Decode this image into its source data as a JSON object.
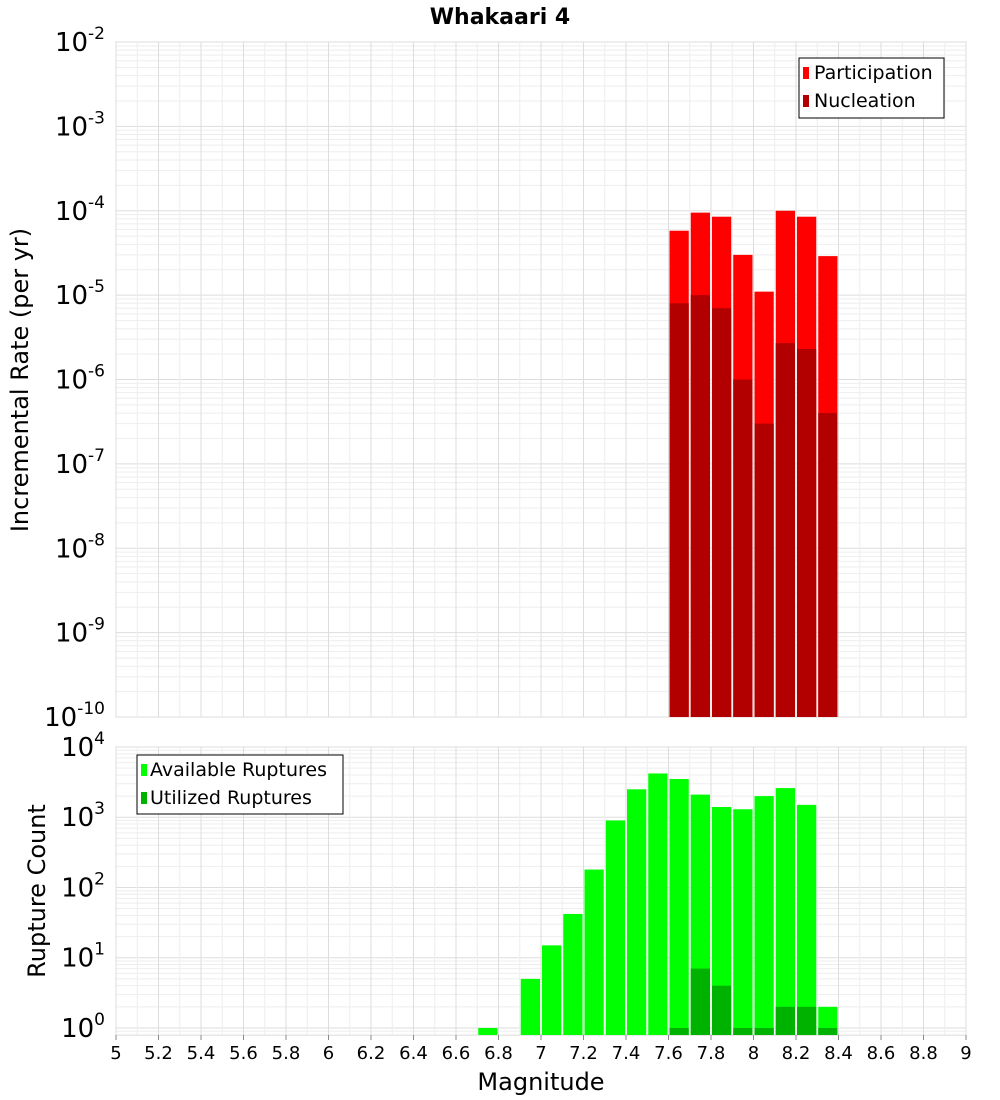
{
  "chart_data": [
    {
      "type": "bar",
      "title": "Whakaari 4",
      "ylabel": "Incremental Rate (per yr)",
      "yscale": "log",
      "ylim_exponents": [
        -10,
        -2
      ],
      "y_tick_base": "10",
      "y_tick_exponents": [
        "-10",
        "-9",
        "-8",
        "-7",
        "-6",
        "-5",
        "-4",
        "-3",
        "-2"
      ],
      "bar_width": 0.1,
      "legend_position": "top-right",
      "series": [
        {
          "name": "Participation",
          "color": "#ff0000",
          "x": [
            7.65,
            7.75,
            7.85,
            7.95,
            8.05,
            8.15,
            8.25,
            8.35
          ],
          "values": [
            5.8e-05,
            9.5e-05,
            8.5e-05,
            3e-05,
            1.1e-05,
            0.0001,
            8.5e-05,
            2.9e-05
          ]
        },
        {
          "name": "Nucleation",
          "color": "#b20000",
          "x": [
            7.65,
            7.75,
            7.85,
            7.95,
            8.05,
            8.15,
            8.25,
            8.35
          ],
          "values": [
            8e-06,
            1e-05,
            7e-06,
            1e-06,
            3e-07,
            2.7e-06,
            2.3e-06,
            4e-07
          ]
        }
      ]
    },
    {
      "type": "bar",
      "xlabel": "Magnitude",
      "ylabel": "Rupture Count",
      "yscale": "log",
      "ylim_exponents": [
        -0.1,
        4
      ],
      "y_tick_base": "10",
      "y_tick_exponents": [
        "0",
        "1",
        "2",
        "3",
        "4"
      ],
      "xlim": [
        5,
        9
      ],
      "x_ticks": [
        "5",
        "5.2",
        "5.4",
        "5.6",
        "5.8",
        "6",
        "6.2",
        "6.4",
        "6.6",
        "6.8",
        "7",
        "7.2",
        "7.4",
        "7.6",
        "7.8",
        "8",
        "8.2",
        "8.4",
        "8.6",
        "8.8",
        "9"
      ],
      "bar_width": 0.1,
      "legend_position": "top-left",
      "series": [
        {
          "name": "Available Ruptures",
          "color": "#00ff00",
          "x": [
            6.75,
            6.95,
            7.05,
            7.15,
            7.25,
            7.35,
            7.45,
            7.55,
            7.65,
            7.75,
            7.85,
            7.95,
            8.05,
            8.15,
            8.25,
            8.35
          ],
          "values": [
            1,
            5,
            15,
            42,
            180,
            900,
            2500,
            4200,
            3500,
            2100,
            1400,
            1300,
            2000,
            2600,
            1500,
            2
          ]
        },
        {
          "name": "Utilized Ruptures",
          "color": "#00b200",
          "x": [
            7.65,
            7.75,
            7.85,
            7.95,
            8.05,
            8.15,
            8.25,
            8.35
          ],
          "values": [
            1,
            7,
            4,
            1,
            1,
            2,
            2,
            1
          ]
        }
      ]
    }
  ]
}
